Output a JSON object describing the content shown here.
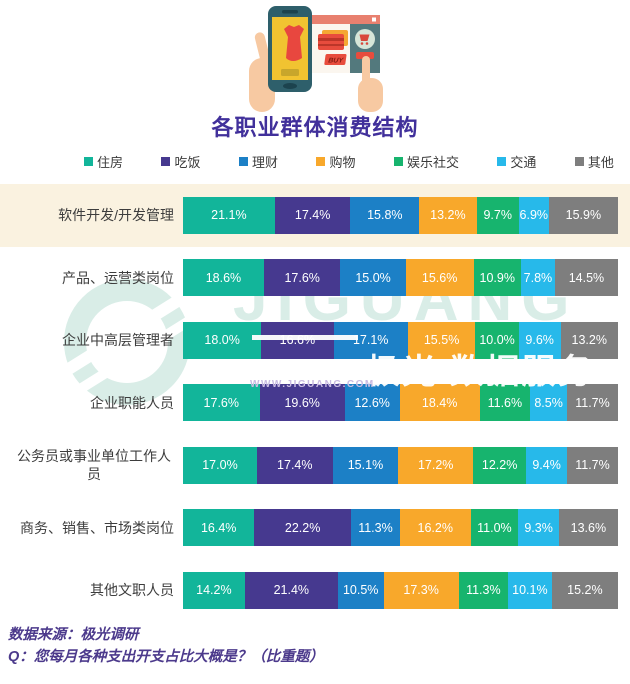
{
  "header": {
    "title": "各职业群体消费结构"
  },
  "legend": {
    "items": [
      {
        "label": "住房",
        "color": "#12B59A"
      },
      {
        "label": "吃饭",
        "color": "#46398F"
      },
      {
        "label": "理财",
        "color": "#1C80C6"
      },
      {
        "label": "购物",
        "color": "#F8A82B"
      },
      {
        "label": "娱乐社交",
        "color": "#17B46E"
      },
      {
        "label": "交通",
        "color": "#27B9EA"
      },
      {
        "label": "其他",
        "color": "#7E7E7E"
      }
    ]
  },
  "chart_data": {
    "type": "bar",
    "orientation": "horizontal-stacked",
    "title": "各职业群体消费结构",
    "unit": "%",
    "xlim": [
      0,
      100
    ],
    "legend_position": "top",
    "highlight_index": 0,
    "highlight_color": "#FAF2E0",
    "categories": [
      "软件开发/开发管理",
      "产品、运营类岗位",
      "企业中高层管理者",
      "企业职能人员",
      "公务员或事业单位工作人员",
      "商务、销售、市场类岗位",
      "其他文职人员"
    ],
    "series": [
      {
        "name": "住房",
        "color": "#12B59A",
        "values": [
          21.1,
          18.6,
          18.0,
          17.6,
          17.0,
          16.4,
          14.2
        ]
      },
      {
        "name": "吃饭",
        "color": "#46398F",
        "values": [
          17.4,
          17.6,
          16.6,
          19.6,
          17.4,
          22.2,
          21.4
        ]
      },
      {
        "name": "理财",
        "color": "#1C80C6",
        "values": [
          15.8,
          15.0,
          17.1,
          12.6,
          15.1,
          11.3,
          10.5
        ]
      },
      {
        "name": "购物",
        "color": "#F8A82B",
        "values": [
          13.2,
          15.6,
          15.5,
          18.4,
          17.2,
          16.2,
          17.3
        ]
      },
      {
        "name": "娱乐社交",
        "color": "#17B46E",
        "values": [
          9.7,
          10.9,
          10.0,
          11.6,
          12.2,
          11.0,
          11.3
        ]
      },
      {
        "name": "交通",
        "color": "#27B9EA",
        "values": [
          6.9,
          7.8,
          9.6,
          8.5,
          9.4,
          9.3,
          10.1
        ]
      },
      {
        "name": "其他",
        "color": "#7E7E7E",
        "values": [
          15.9,
          14.5,
          13.2,
          11.7,
          11.7,
          13.6,
          15.2
        ]
      }
    ]
  },
  "watermark": {
    "brand": "JIGUANG",
    "cn": "极光 数据服务",
    "url": "WWW.JIGUANG.COM"
  },
  "footer": {
    "source": "数据来源：极光调研",
    "question": "Q：您每月各种支出开支占比大概是？（比重题）"
  }
}
